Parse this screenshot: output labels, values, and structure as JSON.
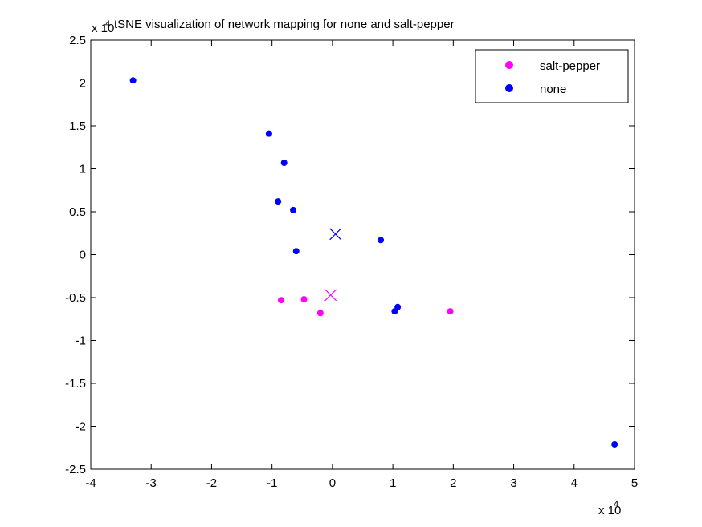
{
  "chart_data": {
    "type": "scatter",
    "title": "tSNE visualization of network mapping for none and salt-pepper",
    "xlabel": "",
    "ylabel": "",
    "x_multiplier": {
      "base": "x 10",
      "exponent": "4"
    },
    "y_multiplier": {
      "base": "x 10",
      "exponent": "4"
    },
    "xlim": [
      -4,
      5
    ],
    "ylim": [
      -2.5,
      2.5
    ],
    "x_ticks": [
      -4,
      -3,
      -2,
      -1,
      0,
      1,
      2,
      3,
      4,
      5
    ],
    "x_tick_labels": [
      "-4",
      "-3",
      "-2",
      "-1",
      "0",
      "1",
      "2",
      "3",
      "4",
      "5"
    ],
    "y_ticks": [
      -2.5,
      -2,
      -1.5,
      -1,
      -0.5,
      0,
      0.5,
      1,
      1.5,
      2,
      2.5
    ],
    "y_tick_labels": [
      "-2.5",
      "-2",
      "-1.5",
      "-1",
      "-0.5",
      "0",
      "0.5",
      "1",
      "1.5",
      "2",
      "2.5"
    ],
    "grid": false,
    "legend_position": "top-right",
    "series": [
      {
        "name": "salt-pepper",
        "color": "#ff00ff",
        "marker": "dot",
        "x": [
          -0.85,
          -0.47,
          -0.2,
          1.95
        ],
        "y": [
          -0.53,
          -0.52,
          -0.68,
          -0.66
        ]
      },
      {
        "name": "none",
        "color": "#0000ff",
        "marker": "dot",
        "x": [
          -3.3,
          -1.05,
          -0.8,
          -0.9,
          -0.65,
          -0.6,
          0.8,
          1.03,
          1.08,
          4.67
        ],
        "y": [
          2.03,
          1.41,
          1.07,
          0.62,
          0.52,
          0.04,
          0.17,
          -0.66,
          -0.61,
          -2.21
        ]
      }
    ],
    "centroids": [
      {
        "series": "none",
        "color": "#0000ff",
        "marker": "x",
        "x": 0.05,
        "y": 0.24
      },
      {
        "series": "salt-pepper",
        "color": "#ff00ff",
        "marker": "x",
        "x": -0.03,
        "y": -0.47
      }
    ]
  }
}
